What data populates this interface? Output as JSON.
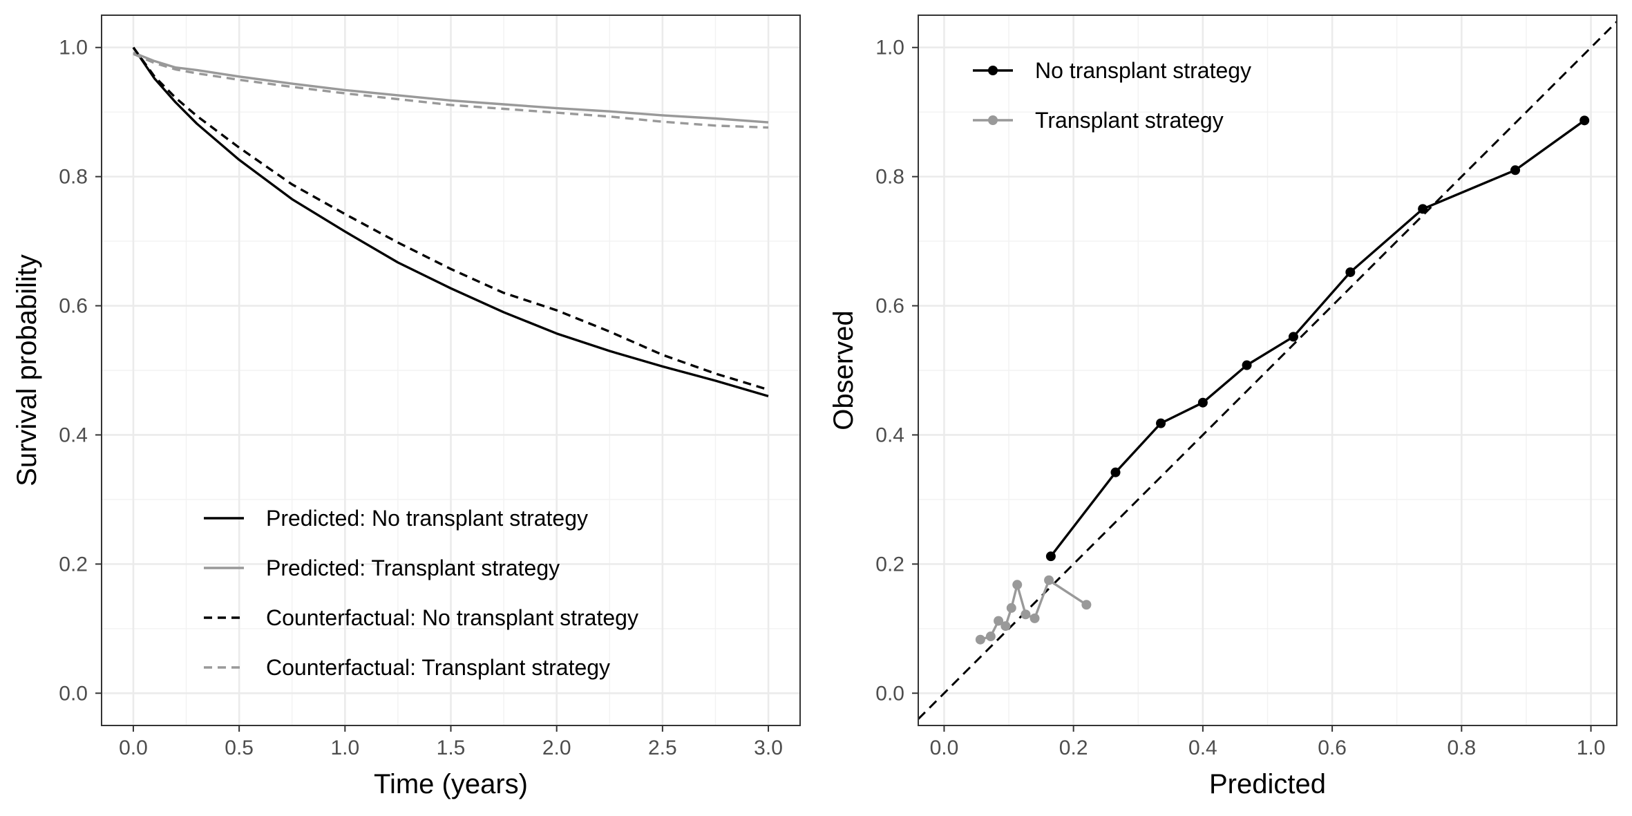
{
  "chart_data": [
    {
      "type": "line",
      "xlabel": "Time (years)",
      "ylabel": "Survival probability",
      "xlim": [
        -0.15,
        3.15
      ],
      "ylim": [
        -0.05,
        1.05
      ],
      "x_ticks": [
        "0.0",
        "0.5",
        "1.0",
        "1.5",
        "2.0",
        "2.5",
        "3.0"
      ],
      "y_ticks": [
        "0.0",
        "0.2",
        "0.4",
        "0.6",
        "0.8",
        "1.0"
      ],
      "grid": true,
      "legend_position": "bottom-left inside",
      "series": [
        {
          "name": "Predicted: No transplant strategy",
          "color": "#000000",
          "dash": "solid",
          "x": [
            0,
            0.1,
            0.2,
            0.3,
            0.5,
            0.75,
            1.0,
            1.25,
            1.5,
            1.75,
            2.0,
            2.25,
            2.5,
            2.75,
            3.0
          ],
          "y": [
            1.0,
            0.952,
            0.915,
            0.882,
            0.826,
            0.765,
            0.715,
            0.667,
            0.627,
            0.59,
            0.557,
            0.53,
            0.506,
            0.484,
            0.46
          ]
        },
        {
          "name": "Predicted: Transplant strategy",
          "color": "#999999",
          "dash": "solid",
          "x": [
            0,
            0.1,
            0.2,
            0.3,
            0.5,
            0.75,
            1.0,
            1.25,
            1.5,
            1.75,
            2.0,
            2.25,
            2.5,
            2.75,
            3.0
          ],
          "y": [
            0.992,
            0.979,
            0.969,
            0.965,
            0.955,
            0.944,
            0.934,
            0.926,
            0.918,
            0.912,
            0.906,
            0.901,
            0.895,
            0.89,
            0.884
          ]
        },
        {
          "name": "Counterfactual: No transplant strategy",
          "color": "#000000",
          "dash": "dashed",
          "x": [
            0,
            0.1,
            0.2,
            0.3,
            0.5,
            0.75,
            1.0,
            1.25,
            1.5,
            1.75,
            2.0,
            2.25,
            2.5,
            2.75,
            3.0
          ],
          "y": [
            1.0,
            0.955,
            0.922,
            0.894,
            0.845,
            0.788,
            0.742,
            0.698,
            0.657,
            0.62,
            0.593,
            0.56,
            0.524,
            0.495,
            0.47
          ]
        },
        {
          "name": "Counterfactual: Transplant strategy",
          "color": "#999999",
          "dash": "dashed",
          "x": [
            0,
            0.1,
            0.2,
            0.3,
            0.5,
            0.75,
            1.0,
            1.25,
            1.5,
            1.75,
            2.0,
            2.25,
            2.5,
            2.75,
            3.0
          ],
          "y": [
            0.99,
            0.976,
            0.966,
            0.96,
            0.95,
            0.939,
            0.929,
            0.92,
            0.911,
            0.905,
            0.899,
            0.893,
            0.885,
            0.879,
            0.876
          ]
        }
      ]
    },
    {
      "type": "line",
      "xlabel": "Predicted",
      "ylabel": "Observed",
      "xlim": [
        -0.04,
        1.04
      ],
      "ylim": [
        -0.05,
        1.05
      ],
      "x_ticks": [
        "0.0",
        "0.2",
        "0.4",
        "0.6",
        "0.8",
        "1.0"
      ],
      "y_ticks": [
        "0.0",
        "0.2",
        "0.4",
        "0.6",
        "0.8",
        "1.0"
      ],
      "grid": true,
      "legend_position": "top-left inside",
      "reference_line": {
        "slope": 1,
        "intercept": 0,
        "color": "#000000",
        "dash": "dashed"
      },
      "series": [
        {
          "name": "No transplant strategy",
          "color": "#000000",
          "markers": true,
          "x": [
            0.165,
            0.265,
            0.335,
            0.4,
            0.468,
            0.54,
            0.628,
            0.74,
            0.883,
            0.99
          ],
          "y": [
            0.212,
            0.342,
            0.418,
            0.45,
            0.508,
            0.552,
            0.652,
            0.75,
            0.81,
            0.887
          ]
        },
        {
          "name": "Transplant strategy",
          "color": "#999999",
          "markers": true,
          "x": [
            0.056,
            0.072,
            0.084,
            0.095,
            0.104,
            0.113,
            0.126,
            0.14,
            0.162,
            0.22
          ],
          "y": [
            0.083,
            0.088,
            0.112,
            0.104,
            0.132,
            0.168,
            0.122,
            0.116,
            0.175,
            0.137
          ]
        }
      ]
    }
  ]
}
